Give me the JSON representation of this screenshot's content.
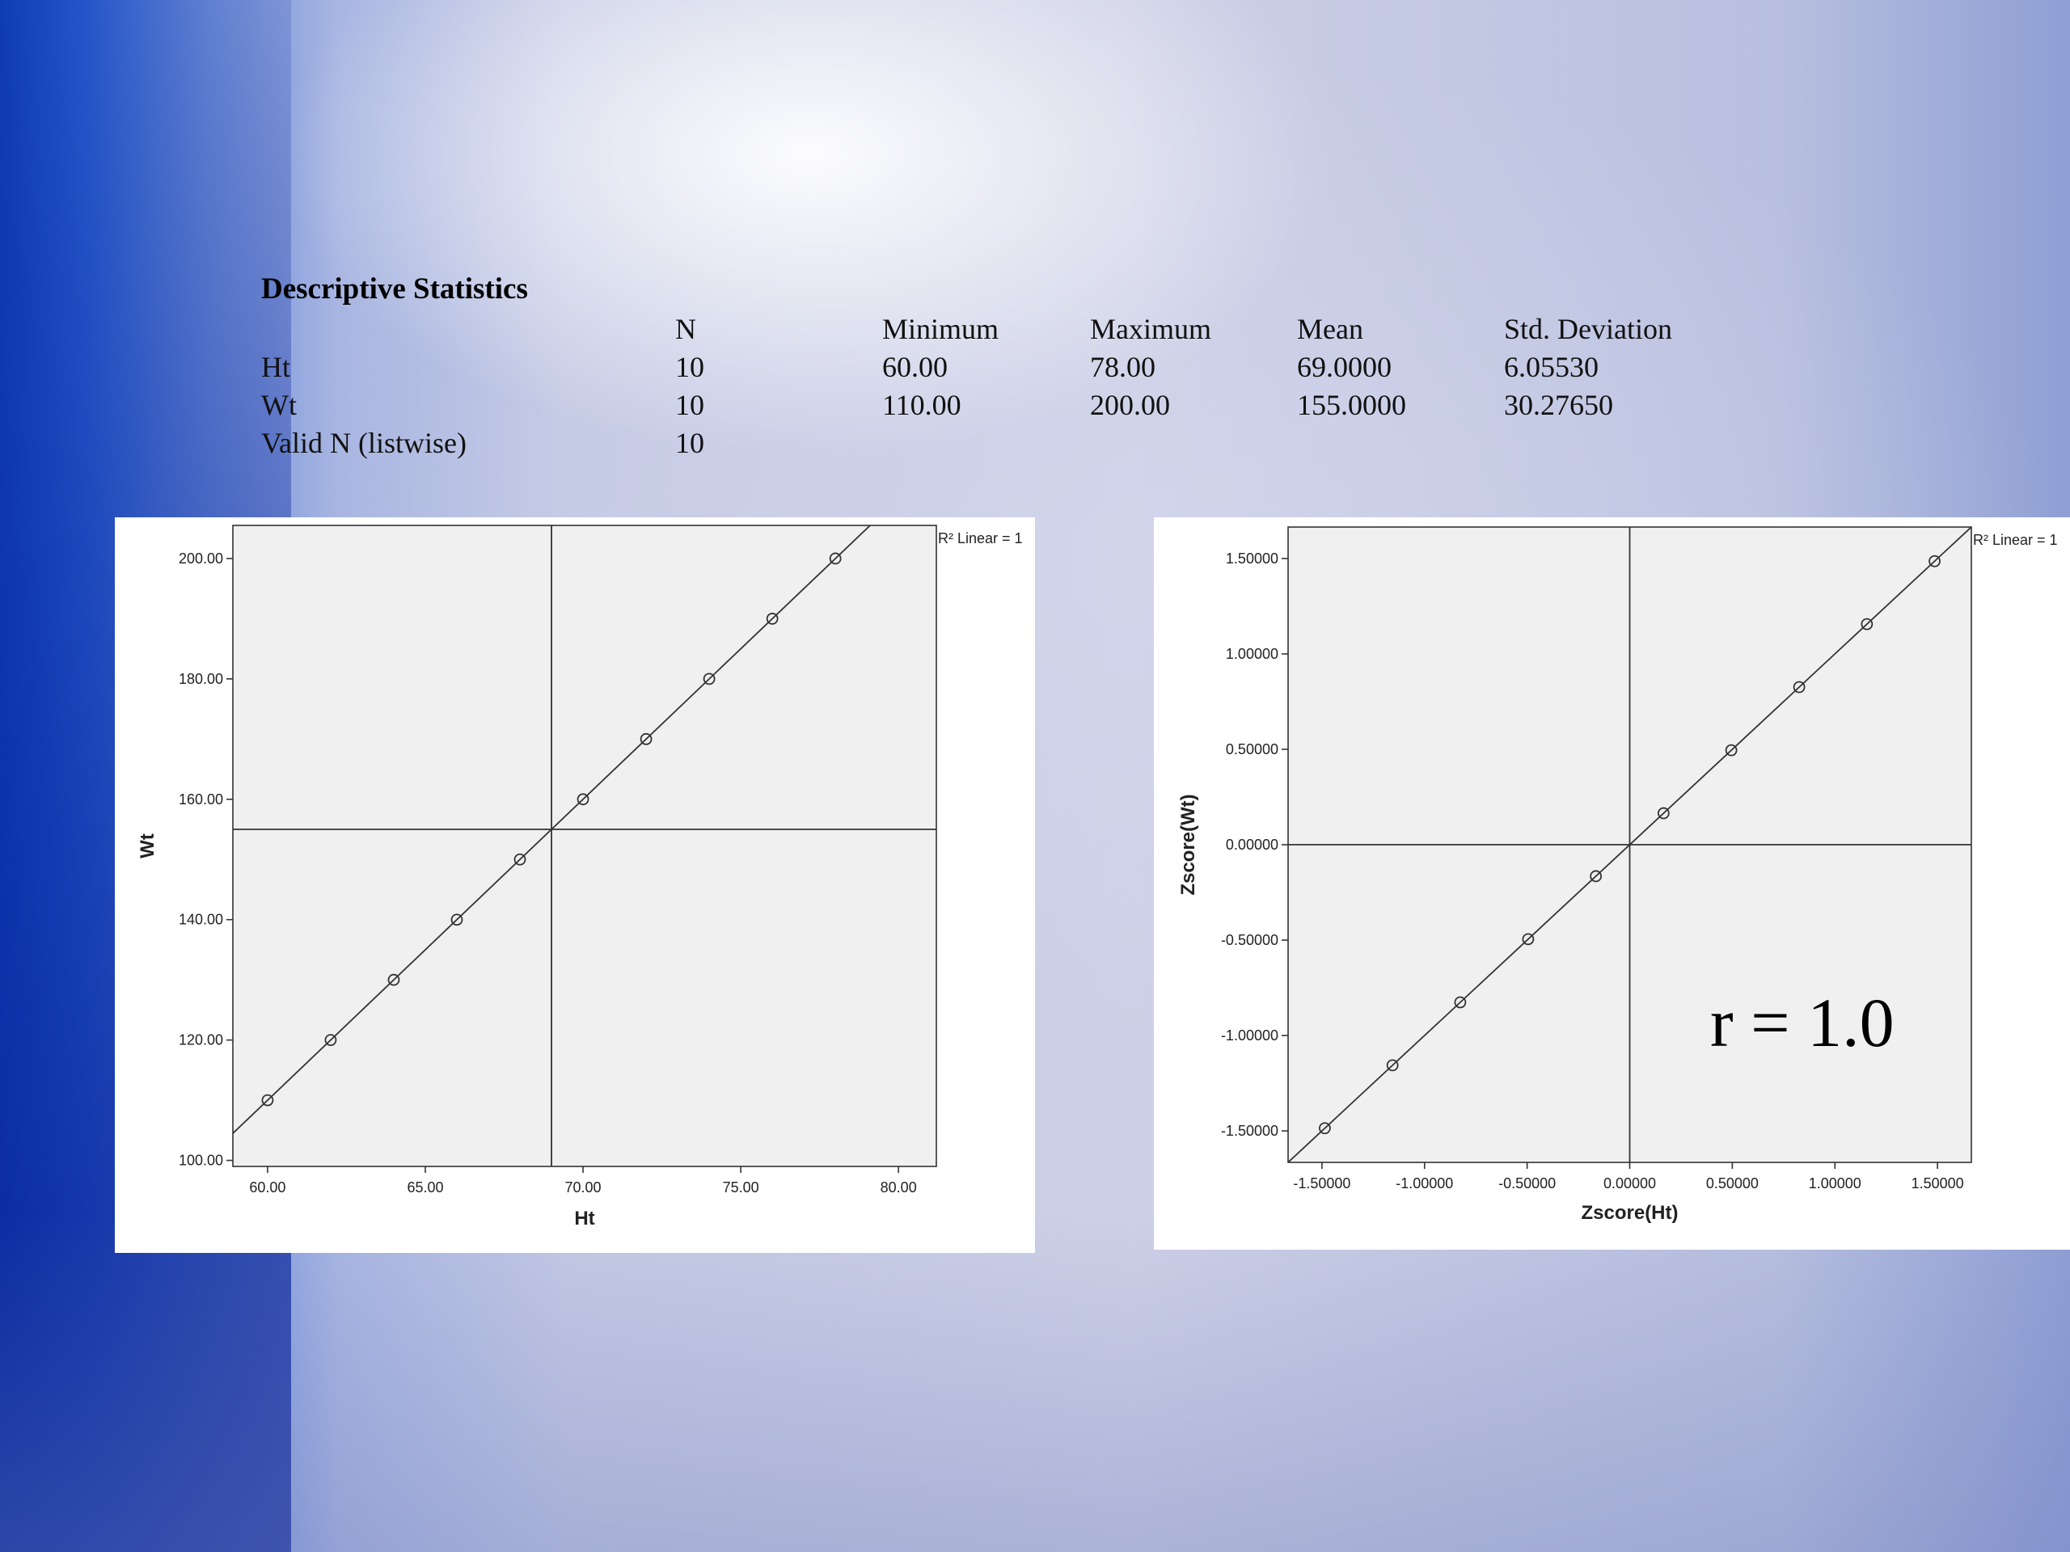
{
  "table": {
    "title": "Descriptive Statistics",
    "headers": [
      "",
      "N",
      "Minimum",
      "Maximum",
      "Mean",
      "Std. Deviation"
    ],
    "rows": [
      [
        "Ht",
        "10",
        "60.00",
        "78.00",
        "69.0000",
        "6.05530"
      ],
      [
        "Wt",
        "10",
        "110.00",
        "200.00",
        "155.0000",
        "30.27650"
      ],
      [
        "Valid N (listwise)",
        "10",
        "",
        "",
        "",
        ""
      ]
    ]
  },
  "chart_data": [
    {
      "type": "scatter",
      "title": "",
      "xlabel": "Ht",
      "ylabel": "Wt",
      "x": [
        60,
        62,
        64,
        66,
        68,
        70,
        72,
        74,
        76,
        78
      ],
      "y": [
        110,
        120,
        130,
        140,
        150,
        160,
        170,
        180,
        190,
        200
      ],
      "xlim": [
        58.9,
        81.2
      ],
      "ylim": [
        99,
        205.5
      ],
      "xticks": [
        60,
        65,
        70,
        75,
        80
      ],
      "xtick_labels": [
        "60.00",
        "65.00",
        "70.00",
        "75.00",
        "80.00"
      ],
      "yticks": [
        100,
        120,
        140,
        160,
        180,
        200
      ],
      "ytick_labels": [
        "100.00",
        "120.00",
        "140.00",
        "160.00",
        "180.00",
        "200.00"
      ],
      "reference_lines": {
        "x": 69,
        "y": 155
      },
      "fit_line": {
        "slope": 5,
        "intercept": -190
      },
      "legend": "R² Linear = 1",
      "legend_placement": "top-right",
      "plot_background": "#f0f0f0",
      "grid": false
    },
    {
      "type": "scatter",
      "title": "",
      "xlabel": "Zscore(Ht)",
      "ylabel": "Zscore(Wt)",
      "x": [
        -1.486,
        -1.156,
        -0.826,
        -0.495,
        -0.165,
        0.165,
        0.495,
        0.826,
        1.156,
        1.486
      ],
      "y": [
        -1.486,
        -1.156,
        -0.826,
        -0.495,
        -0.165,
        0.165,
        0.495,
        0.826,
        1.156,
        1.486
      ],
      "xlim": [
        -1.665,
        1.665
      ],
      "ylim": [
        -1.665,
        1.665
      ],
      "xticks": [
        -1.5,
        -1.0,
        -0.5,
        0,
        0.5,
        1.0,
        1.5
      ],
      "xtick_labels": [
        "-1.50000",
        "-1.00000",
        "-0.50000",
        "0.00000",
        "0.50000",
        "1.00000",
        "1.50000"
      ],
      "yticks": [
        -1.5,
        -1.0,
        -0.5,
        0,
        0.5,
        1.0,
        1.5
      ],
      "ytick_labels": [
        "-1.50000",
        "-1.00000",
        "-0.50000",
        "0.00000",
        "0.50000",
        "1.00000",
        "1.50000"
      ],
      "reference_lines": {
        "x": 0,
        "y": 0
      },
      "fit_line": {
        "slope": 1,
        "intercept": 0
      },
      "legend": "R² Linear = 1",
      "legend_placement": "top-right",
      "annotation": "r = 1.0",
      "plot_background": "#f0f0f0",
      "grid": false
    }
  ]
}
